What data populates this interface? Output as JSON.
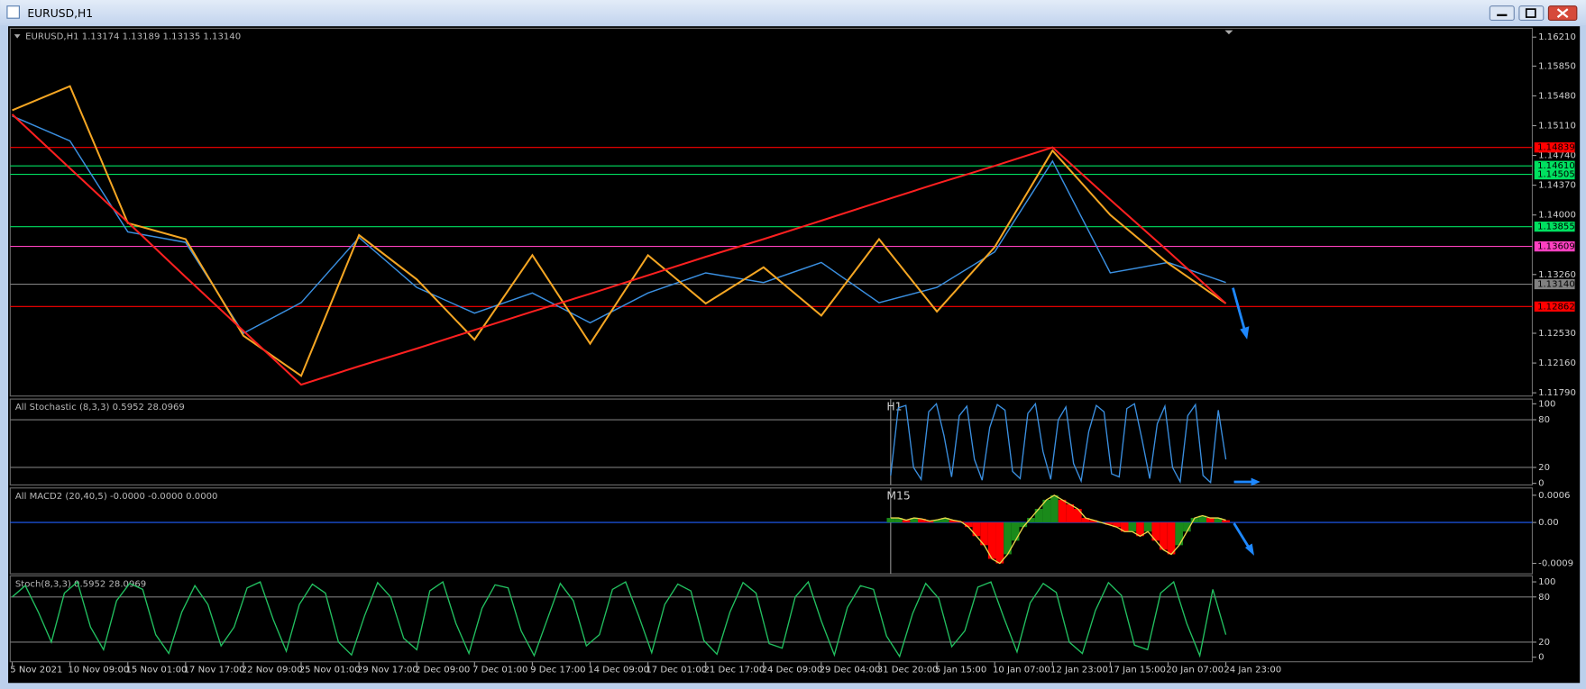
{
  "window": {
    "title": "EURUSD,H1"
  },
  "chart_data": [
    {
      "type": "line",
      "title": "EURUSD,H1  1.13174 1.13189 1.13135 1.13140",
      "categories": [
        "5 Nov 2021",
        "10 Nov 09:00",
        "15 Nov 01:00",
        "17 Nov 17:00",
        "22 Nov 09:00",
        "25 Nov 01:00",
        "29 Nov 17:00",
        "2 Dec 09:00",
        "7 Dec 01:00",
        "9 Dec 17:00",
        "14 Dec 09:00",
        "17 Dec 01:00",
        "21 Dec 17:00",
        "24 Dec 09:00",
        "29 Dec 04:00",
        "31 Dec 20:00",
        "5 Jan 15:00",
        "10 Jan 07:00",
        "12 Jan 23:00",
        "17 Jan 15:00",
        "20 Jan 07:00",
        "24 Jan 23:00"
      ],
      "series": [
        {
          "color": "#3a8fe0",
          "values": [
            1.1523,
            1.1492,
            1.1379,
            1.1366,
            1.1253,
            1.1291,
            1.1372,
            1.131,
            1.1278,
            1.1303,
            1.1266,
            1.1303,
            1.1328,
            1.1316,
            1.1341,
            1.1291,
            1.131,
            1.1354,
            1.1467,
            1.1328,
            1.1341,
            1.1316
          ]
        },
        {
          "color": "#f5a623",
          "values": [
            1.153,
            1.156,
            1.139,
            1.137,
            1.125,
            1.12,
            1.1375,
            1.132,
            1.1245,
            1.135,
            1.124,
            1.135,
            1.129,
            1.1335,
            1.1275,
            1.137,
            1.128,
            1.136,
            1.148,
            1.14,
            1.134,
            1.129
          ]
        },
        {
          "color": "#ff2020",
          "values": [
            1.1525,
            1.1458,
            1.1391,
            1.1323,
            1.1256,
            1.1189,
            1.1212,
            1.1234,
            1.1257,
            1.128,
            1.1302,
            1.1325,
            1.1348,
            1.137,
            1.1393,
            1.1416,
            1.1439,
            1.1461,
            1.1484,
            1.1419,
            1.1355,
            1.129
          ]
        }
      ],
      "levels": [
        {
          "value": 1.14839,
          "color": "#ff0000"
        },
        {
          "value": 1.1461,
          "label": "1.14610",
          "color": "#00e060"
        },
        {
          "value": 1.14505,
          "color": "#00e060"
        },
        {
          "value": 1.13855,
          "color": "#00e060"
        },
        {
          "value": 1.13609,
          "color": "#ff40c0"
        },
        {
          "value": 1.1314,
          "label": "1.13140",
          "color": "#808080"
        },
        {
          "value": 1.12862,
          "color": "#ff0000"
        }
      ],
      "ylim": [
        1.1175,
        1.1632
      ],
      "yticks": [
        {
          "value": 1.1621,
          "label": "1.16210"
        },
        {
          "value": 1.1585,
          "label": "1.15850"
        },
        {
          "value": 1.1548,
          "label": "1.15480"
        },
        {
          "value": 1.1511,
          "label": "1.15110"
        },
        {
          "value": 1.1474,
          "label": "1.14740"
        },
        {
          "value": 1.1437,
          "label": "1.14370"
        },
        {
          "value": 1.14,
          "label": "1.14000"
        },
        {
          "value": 1.1326,
          "label": "1.13260"
        },
        {
          "value": 1.1253,
          "label": "1.12530"
        },
        {
          "value": 1.1216,
          "label": "1.12160"
        },
        {
          "value": 1.1179,
          "label": "1.11790"
        }
      ]
    },
    {
      "type": "line",
      "title": "All Stochastic (8,3,3) 0.5952 28.0969",
      "timeframe": "H1",
      "color": "#3a8fe0",
      "values": [
        10,
        95,
        98,
        20,
        5,
        90,
        100,
        60,
        8,
        85,
        97,
        30,
        4,
        70,
        99,
        92,
        15,
        6,
        88,
        100,
        40,
        5,
        80,
        96,
        25,
        3,
        65,
        98,
        90,
        12,
        8,
        94,
        100,
        55,
        6,
        75,
        97,
        20,
        2,
        85,
        99,
        10,
        1,
        92,
        30
      ],
      "ylim": [
        -2,
        106
      ],
      "yticks": [
        100,
        80,
        20,
        0
      ]
    },
    {
      "type": "bar",
      "title": "All MACD2 (20,40,5) -0.0000 -0.0000 0.0000",
      "timeframe": "M15",
      "colors": [
        "#1a8a1a",
        "#ff0000"
      ],
      "line_color": "#e8d84a",
      "values": [
        0.0001,
        0.0001,
        5e-05,
        0.0001,
        8e-05,
        3e-05,
        6e-05,
        0.0001,
        5e-05,
        2e-05,
        -0.0001,
        -0.0003,
        -0.0005,
        -0.0008,
        -0.0009,
        -0.0007,
        -0.0004,
        -0.0001,
        0.0001,
        0.0003,
        0.0005,
        0.0006,
        0.0005,
        0.0004,
        0.0003,
        0.0001,
        5e-05,
        0,
        -5e-05,
        -0.0001,
        -0.0002,
        -0.0002,
        -0.0003,
        -0.0002,
        -0.0004,
        -0.0006,
        -0.0007,
        -0.0005,
        -0.0002,
        0.0001,
        0.00015,
        0.0001,
        0.0001,
        5e-05
      ],
      "ylim": [
        -0.00113,
        0.00076
      ],
      "yticks": [
        0.0006,
        {
          "value": 0,
          "label": "0.00"
        },
        -0.0009
      ]
    },
    {
      "type": "line",
      "title": "Stoch(8,3,3) 0.5952 28.0969",
      "color": "#22c060",
      "values": [
        80,
        95,
        60,
        20,
        85,
        100,
        40,
        10,
        75,
        98,
        90,
        30,
        5,
        60,
        95,
        70,
        15,
        40,
        92,
        100,
        50,
        8,
        70,
        97,
        85,
        20,
        3,
        55,
        99,
        80,
        25,
        10,
        88,
        100,
        45,
        5,
        65,
        96,
        92,
        35,
        2,
        50,
        98,
        75,
        15,
        30,
        90,
        100,
        55,
        6,
        70,
        97,
        88,
        22,
        4,
        60,
        99,
        85,
        18,
        12,
        80,
        100,
        48,
        3,
        66,
        95,
        90,
        28,
        1,
        58,
        98,
        78,
        14,
        35,
        93,
        100,
        52,
        7,
        72,
        98,
        86,
        20,
        5,
        62,
        99,
        82,
        16,
        10,
        85,
        100,
        45,
        2,
        90,
        30
      ],
      "ylim": [
        -6,
        108
      ],
      "yticks": [
        100,
        80,
        20,
        0
      ]
    }
  ]
}
